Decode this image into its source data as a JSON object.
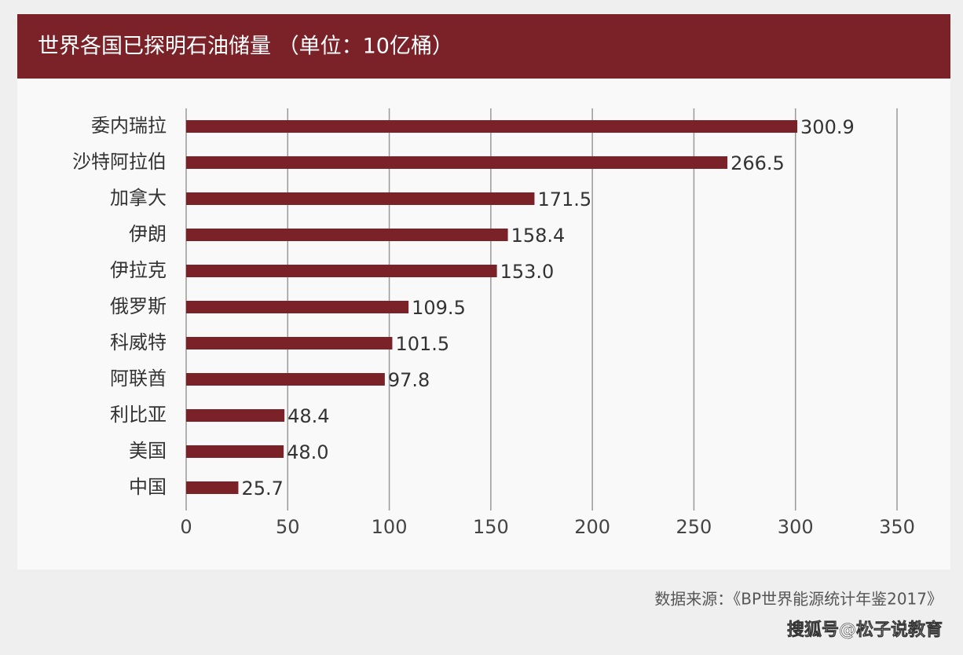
{
  "chart_data": {
    "type": "bar",
    "orientation": "horizontal",
    "title": "世界各国已探明石油储量 （单位：10亿桶）",
    "categories": [
      "委内瑞拉",
      "沙特阿拉伯",
      "加拿大",
      "伊朗",
      "伊拉克",
      "俄罗斯",
      "科威特",
      "阿联酋",
      "利比亚",
      "美国",
      "中国"
    ],
    "values": [
      300.9,
      266.5,
      171.5,
      158.4,
      153.0,
      109.5,
      101.5,
      97.8,
      48.4,
      48.0,
      25.7
    ],
    "value_labels": [
      "300.9",
      "266.5",
      "171.5",
      "158.4",
      "153.0",
      "109.5",
      "101.5",
      "97.8",
      "48.4",
      "48.0",
      "25.7"
    ],
    "color": "#7b2228",
    "xlim": [
      0,
      350
    ],
    "xticks": [
      0,
      50,
      100,
      150,
      200,
      250,
      300,
      350
    ],
    "grid": true,
    "source": "数据来源：《BP世界能源统计年鉴2017》",
    "watermark": "搜狐号@松子说教育"
  }
}
